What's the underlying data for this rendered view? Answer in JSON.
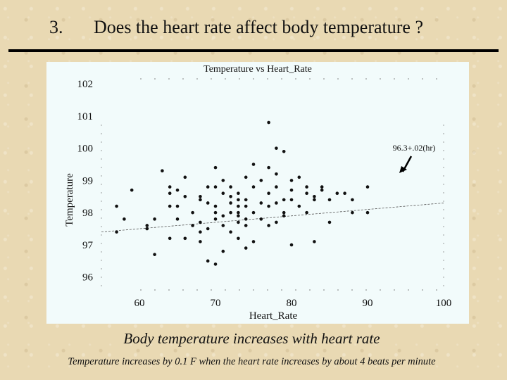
{
  "slide": {
    "number": "3.",
    "title": "Does the heart rate affect body temperature ?",
    "caption_main": "Body temperature increases with heart rate",
    "caption_sub": "Temperature increases by 0.1 F when the heart rate increases by about 4 beats per minute"
  },
  "colors": {
    "background": "#e9d9b3",
    "panel": "#f2fbfb",
    "points": "#111111"
  },
  "chart_data": {
    "type": "scatter",
    "title": "Temperature vs Heart_Rate",
    "xlabel": "Heart_Rate",
    "ylabel": "Temperature",
    "xlim": [
      55,
      100
    ],
    "ylim": [
      95.6,
      102.2
    ],
    "xticks": [
      60,
      70,
      80,
      90,
      100
    ],
    "yticks": [
      96,
      97,
      98,
      99,
      100,
      101,
      102
    ],
    "grid": false,
    "fit_line": {
      "intercept": 96.3,
      "slope": 0.02,
      "label": "96.3+.02(hr)"
    },
    "points": [
      [
        57,
        98.2
      ],
      [
        57,
        97.4
      ],
      [
        58,
        97.8
      ],
      [
        59,
        98.7
      ],
      [
        61,
        97.6
      ],
      [
        61,
        97.5
      ],
      [
        62,
        97.8
      ],
      [
        62,
        96.7
      ],
      [
        63,
        99.3
      ],
      [
        64,
        97.2
      ],
      [
        64,
        98.2
      ],
      [
        64,
        98.8
      ],
      [
        64,
        98.6
      ],
      [
        65,
        98.2
      ],
      [
        65,
        97.8
      ],
      [
        65,
        98.7
      ],
      [
        66,
        97.2
      ],
      [
        66,
        98.5
      ],
      [
        66,
        99.1
      ],
      [
        67,
        98.0
      ],
      [
        67,
        97.6
      ],
      [
        68,
        98.4
      ],
      [
        68,
        97.4
      ],
      [
        68,
        97.1
      ],
      [
        68,
        98.5
      ],
      [
        68,
        97.7
      ],
      [
        69,
        98.3
      ],
      [
        69,
        98.8
      ],
      [
        69,
        96.5
      ],
      [
        69,
        97.5
      ],
      [
        70,
        98.0
      ],
      [
        70,
        99.4
      ],
      [
        70,
        97.8
      ],
      [
        70,
        98.8
      ],
      [
        70,
        96.4
      ],
      [
        70,
        98.2
      ],
      [
        71,
        97.9
      ],
      [
        71,
        98.6
      ],
      [
        71,
        96.8
      ],
      [
        71,
        99.0
      ],
      [
        71,
        97.6
      ],
      [
        72,
        98.3
      ],
      [
        72,
        98.0
      ],
      [
        72,
        98.5
      ],
      [
        72,
        97.4
      ],
      [
        72,
        98.8
      ],
      [
        73,
        98.4
      ],
      [
        73,
        97.2
      ],
      [
        73,
        98.2
      ],
      [
        73,
        97.7
      ],
      [
        73,
        98.6
      ],
      [
        73,
        97.9
      ],
      [
        73,
        98.0
      ],
      [
        74,
        98.4
      ],
      [
        74,
        97.6
      ],
      [
        74,
        99.1
      ],
      [
        74,
        96.9
      ],
      [
        74,
        98.2
      ],
      [
        74,
        97.8
      ],
      [
        75,
        99.5
      ],
      [
        75,
        98.8
      ],
      [
        75,
        97.1
      ],
      [
        75,
        98.0
      ],
      [
        76,
        98.3
      ],
      [
        76,
        97.8
      ],
      [
        76,
        99.0
      ],
      [
        77,
        100.8
      ],
      [
        77,
        98.2
      ],
      [
        77,
        97.6
      ],
      [
        77,
        99.4
      ],
      [
        77,
        98.6
      ],
      [
        78,
        100.0
      ],
      [
        78,
        98.3
      ],
      [
        78,
        97.7
      ],
      [
        78,
        98.8
      ],
      [
        78,
        99.2
      ],
      [
        79,
        99.9
      ],
      [
        79,
        97.9
      ],
      [
        79,
        98.4
      ],
      [
        79,
        98.0
      ],
      [
        80,
        97.0
      ],
      [
        80,
        98.4
      ],
      [
        80,
        98.7
      ],
      [
        80,
        99.0
      ],
      [
        81,
        98.2
      ],
      [
        81,
        99.1
      ],
      [
        82,
        98.6
      ],
      [
        82,
        98.0
      ],
      [
        82,
        98.8
      ],
      [
        83,
        97.1
      ],
      [
        83,
        98.4
      ],
      [
        83,
        98.5
      ],
      [
        84,
        98.7
      ],
      [
        84,
        98.8
      ],
      [
        85,
        97.7
      ],
      [
        85,
        98.4
      ],
      [
        86,
        98.6
      ],
      [
        87,
        98.6
      ],
      [
        88,
        98.0
      ],
      [
        88,
        98.4
      ],
      [
        90,
        98.0
      ],
      [
        90,
        98.8
      ]
    ]
  }
}
